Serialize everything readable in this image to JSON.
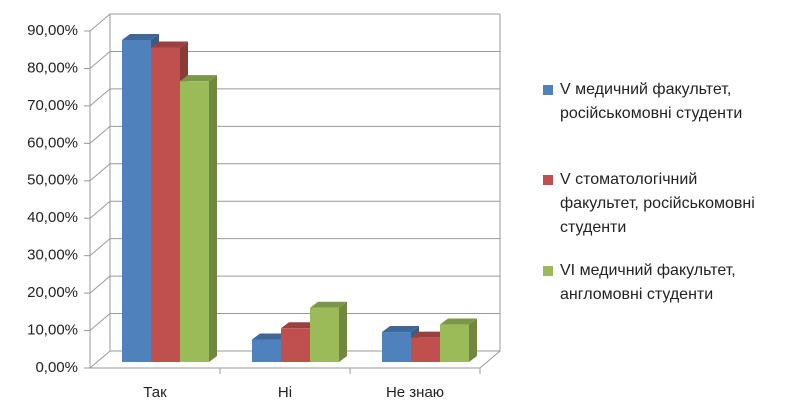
{
  "chart_data": {
    "type": "bar3d",
    "categories": [
      "Так",
      "Ні",
      "Не знаю"
    ],
    "series": [
      {
        "name": "V медичний факультет, російськомовні студенти",
        "color": "#4f81bd",
        "values": [
          86,
          6,
          8
        ]
      },
      {
        "name": "V стоматологічний факультет, російськомовні студенти",
        "color": "#c0504d",
        "values": [
          84,
          9,
          6.5
        ]
      },
      {
        "name": "VI медичний факультет, англомовні студенти",
        "color": "#9bbb59",
        "values": [
          75,
          14.5,
          10
        ]
      }
    ],
    "ylim": [
      0,
      90
    ],
    "yticks": [
      {
        "value": 0,
        "label": "0,00%"
      },
      {
        "value": 10,
        "label": "10,00%"
      },
      {
        "value": 20,
        "label": "20,00%"
      },
      {
        "value": 30,
        "label": "30,00%"
      },
      {
        "value": 40,
        "label": "40,00%"
      },
      {
        "value": 50,
        "label": "50,00%"
      },
      {
        "value": 60,
        "label": "60,00%"
      },
      {
        "value": 70,
        "label": "70,00%"
      },
      {
        "value": 80,
        "label": "80,00%"
      },
      {
        "value": 90,
        "label": "90,00%"
      }
    ],
    "grid": true,
    "legend": "right"
  }
}
